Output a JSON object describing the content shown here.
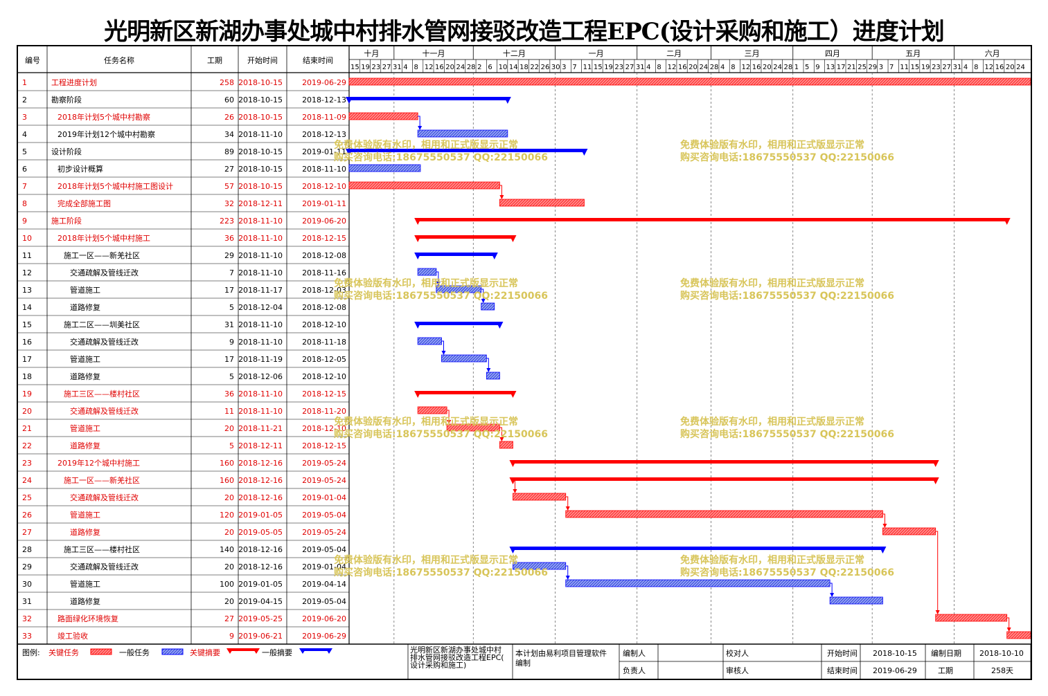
{
  "title": "光明新区新湖办事处城中村排水管网接驳改造工程EPC(设计采购和施工）进度计划",
  "columns": {
    "id": "编号",
    "name": "任务名称",
    "duration": "工期",
    "start": "开始时间",
    "end": "结束时间"
  },
  "months": [
    "十月",
    "十一月",
    "十二月",
    "一月",
    "二月",
    "三月",
    "四月",
    "五月",
    "六月"
  ],
  "day_ticks": [
    "15",
    "19",
    "23",
    "27",
    "31",
    "4",
    "8",
    "12",
    "16",
    "20",
    "24",
    "28",
    "2",
    "6",
    "10",
    "14",
    "18",
    "22",
    "26",
    "30",
    "3",
    "7",
    "11",
    "15",
    "19",
    "23",
    "27",
    "31",
    "4",
    "8",
    "12",
    "16",
    "20",
    "24",
    "28",
    "4",
    "8",
    "12",
    "16",
    "20",
    "24",
    "28",
    "1",
    "5",
    "9",
    "13",
    "17",
    "21",
    "25",
    "29",
    "3",
    "7",
    "11",
    "15",
    "19",
    "23",
    "27",
    "31",
    "4",
    "8",
    "12",
    "16",
    "20",
    "24"
  ],
  "timeline": {
    "start": "2018-10-15",
    "end": "2019-06-29"
  },
  "tasks": [
    {
      "id": "1",
      "name": "工程进度计划",
      "dur": "258",
      "start": "2018-10-15",
      "end": "2019-06-29",
      "indent": 0,
      "critical": true,
      "summary": false,
      "pred": null
    },
    {
      "id": "2",
      "name": "勘察阶段",
      "dur": "60",
      "start": "2018-10-15",
      "end": "2018-12-13",
      "indent": 0,
      "critical": false,
      "summary": true,
      "pred": null
    },
    {
      "id": "3",
      "name": "2018年计划5个城中村勘察",
      "dur": "26",
      "start": "2018-10-15",
      "end": "2018-11-09",
      "indent": 1,
      "critical": true,
      "summary": false,
      "pred": null
    },
    {
      "id": "4",
      "name": "2019年计划12个城中村勘察",
      "dur": "34",
      "start": "2018-11-10",
      "end": "2018-12-13",
      "indent": 1,
      "critical": false,
      "summary": false,
      "pred": "3"
    },
    {
      "id": "5",
      "name": "设计阶段",
      "dur": "89",
      "start": "2018-10-15",
      "end": "2019-01-11",
      "indent": 0,
      "critical": false,
      "summary": true,
      "pred": null
    },
    {
      "id": "6",
      "name": "初步设计概算",
      "dur": "27",
      "start": "2018-10-15",
      "end": "2018-11-10",
      "indent": 1,
      "critical": false,
      "summary": false,
      "pred": null
    },
    {
      "id": "7",
      "name": "2018年计划5个城中村施工图设计",
      "dur": "57",
      "start": "2018-10-15",
      "end": "2018-12-10",
      "indent": 1,
      "critical": true,
      "summary": false,
      "pred": null
    },
    {
      "id": "8",
      "name": "完成全部施工图",
      "dur": "32",
      "start": "2018-12-11",
      "end": "2019-01-11",
      "indent": 1,
      "critical": true,
      "summary": false,
      "pred": "7"
    },
    {
      "id": "9",
      "name": "施工阶段",
      "dur": "223",
      "start": "2018-11-10",
      "end": "2019-06-20",
      "indent": 0,
      "critical": true,
      "summary": true,
      "pred": null
    },
    {
      "id": "10",
      "name": "2018年计划5个城中村施工",
      "dur": "36",
      "start": "2018-11-10",
      "end": "2018-12-15",
      "indent": 1,
      "critical": true,
      "summary": true,
      "pred": null
    },
    {
      "id": "11",
      "name": "施工一区——新羌社区",
      "dur": "29",
      "start": "2018-11-10",
      "end": "2018-12-08",
      "indent": 2,
      "critical": false,
      "summary": true,
      "pred": null
    },
    {
      "id": "12",
      "name": "交通疏解及管线迁改",
      "dur": "7",
      "start": "2018-11-10",
      "end": "2018-11-16",
      "indent": 3,
      "critical": false,
      "summary": false,
      "pred": null
    },
    {
      "id": "13",
      "name": "管道施工",
      "dur": "17",
      "start": "2018-11-17",
      "end": "2018-12-03",
      "indent": 3,
      "critical": false,
      "summary": false,
      "pred": "12"
    },
    {
      "id": "14",
      "name": "道路修复",
      "dur": "5",
      "start": "2018-12-04",
      "end": "2018-12-08",
      "indent": 3,
      "critical": false,
      "summary": false,
      "pred": "13"
    },
    {
      "id": "15",
      "name": "施工二区——圳美社区",
      "dur": "31",
      "start": "2018-11-10",
      "end": "2018-12-10",
      "indent": 2,
      "critical": false,
      "summary": true,
      "pred": null
    },
    {
      "id": "16",
      "name": "交通疏解及管线迁改",
      "dur": "9",
      "start": "2018-11-10",
      "end": "2018-11-18",
      "indent": 3,
      "critical": false,
      "summary": false,
      "pred": null
    },
    {
      "id": "17",
      "name": "管道施工",
      "dur": "17",
      "start": "2018-11-19",
      "end": "2018-12-05",
      "indent": 3,
      "critical": false,
      "summary": false,
      "pred": "16"
    },
    {
      "id": "18",
      "name": "道路修复",
      "dur": "5",
      "start": "2018-12-06",
      "end": "2018-12-10",
      "indent": 3,
      "critical": false,
      "summary": false,
      "pred": "17"
    },
    {
      "id": "19",
      "name": "施工三区——楼村社区",
      "dur": "36",
      "start": "2018-11-10",
      "end": "2018-12-15",
      "indent": 2,
      "critical": true,
      "summary": true,
      "pred": null
    },
    {
      "id": "20",
      "name": "交通疏解及管线迁改",
      "dur": "11",
      "start": "2018-11-10",
      "end": "2018-11-20",
      "indent": 3,
      "critical": true,
      "summary": false,
      "pred": null
    },
    {
      "id": "21",
      "name": "管道施工",
      "dur": "20",
      "start": "2018-11-21",
      "end": "2018-12-10",
      "indent": 3,
      "critical": true,
      "summary": false,
      "pred": "20"
    },
    {
      "id": "22",
      "name": "道路修复",
      "dur": "5",
      "start": "2018-12-11",
      "end": "2018-12-15",
      "indent": 3,
      "critical": true,
      "summary": false,
      "pred": "21"
    },
    {
      "id": "23",
      "name": "2019年12个城中村施工",
      "dur": "160",
      "start": "2018-12-16",
      "end": "2019-05-24",
      "indent": 1,
      "critical": true,
      "summary": true,
      "pred": null
    },
    {
      "id": "24",
      "name": "施工一区——新羌社区",
      "dur": "160",
      "start": "2018-12-16",
      "end": "2019-05-24",
      "indent": 2,
      "critical": true,
      "summary": true,
      "pred": null
    },
    {
      "id": "25",
      "name": "交通疏解及管线迁改",
      "dur": "20",
      "start": "2018-12-16",
      "end": "2019-01-04",
      "indent": 3,
      "critical": true,
      "summary": false,
      "pred": "24"
    },
    {
      "id": "26",
      "name": "管道施工",
      "dur": "120",
      "start": "2019-01-05",
      "end": "2019-05-04",
      "indent": 3,
      "critical": true,
      "summary": false,
      "pred": "25"
    },
    {
      "id": "27",
      "name": "道路修复",
      "dur": "20",
      "start": "2019-05-05",
      "end": "2019-05-24",
      "indent": 3,
      "critical": true,
      "summary": false,
      "pred": "26"
    },
    {
      "id": "28",
      "name": "施工三区——楼村社区",
      "dur": "140",
      "start": "2018-12-16",
      "end": "2019-05-04",
      "indent": 2,
      "critical": false,
      "summary": true,
      "pred": null
    },
    {
      "id": "29",
      "name": "交通疏解及管线迁改",
      "dur": "20",
      "start": "2018-12-16",
      "end": "2019-01-04",
      "indent": 3,
      "critical": false,
      "summary": false,
      "pred": null
    },
    {
      "id": "30",
      "name": "管道施工",
      "dur": "100",
      "start": "2019-01-05",
      "end": "2019-04-14",
      "indent": 3,
      "critical": false,
      "summary": false,
      "pred": "29"
    },
    {
      "id": "31",
      "name": "道路修复",
      "dur": "20",
      "start": "2019-04-15",
      "end": "2019-05-04",
      "indent": 3,
      "critical": false,
      "summary": false,
      "pred": "30"
    },
    {
      "id": "32",
      "name": "路面绿化环境恢复",
      "dur": "27",
      "start": "2019-05-25",
      "end": "2019-06-20",
      "indent": 1,
      "critical": true,
      "summary": false,
      "pred": "27"
    },
    {
      "id": "33",
      "name": "竣工验收",
      "dur": "9",
      "start": "2019-06-21",
      "end": "2019-06-29",
      "indent": 1,
      "critical": true,
      "summary": false,
      "pred": "32"
    }
  ],
  "watermark": {
    "line1": "免费体验版有水印，相用和正式版显示正常",
    "line2": "购买咨询电话:18675550537 QQ:22150066"
  },
  "legend": {
    "label": "图例:",
    "critical_task": "关键任务",
    "normal_task": "一般任务",
    "critical_summary": "关键摘要",
    "normal_summary": "一般摘要"
  },
  "footer": {
    "project": "光明新区新湖办事处城中村排水管网接驳改造工程EPC(设计采购和施工)",
    "software": "本计划由易利项目管理软件编制",
    "editor_label": "编制人",
    "owner_label": "负责人",
    "checker_label": "校对人",
    "reviewer_label": "审核人",
    "start_label": "开始时间",
    "start_value": "2018-10-15",
    "end_label": "结束时间",
    "end_value": "2019-06-29",
    "date_label": "编制日期",
    "date_value": "2018-10-10",
    "duration_label": "工期",
    "duration_value": "258天"
  },
  "colors": {
    "critical": "#ff0000",
    "normal": "#0000ff",
    "text_critical": "#e00000"
  }
}
